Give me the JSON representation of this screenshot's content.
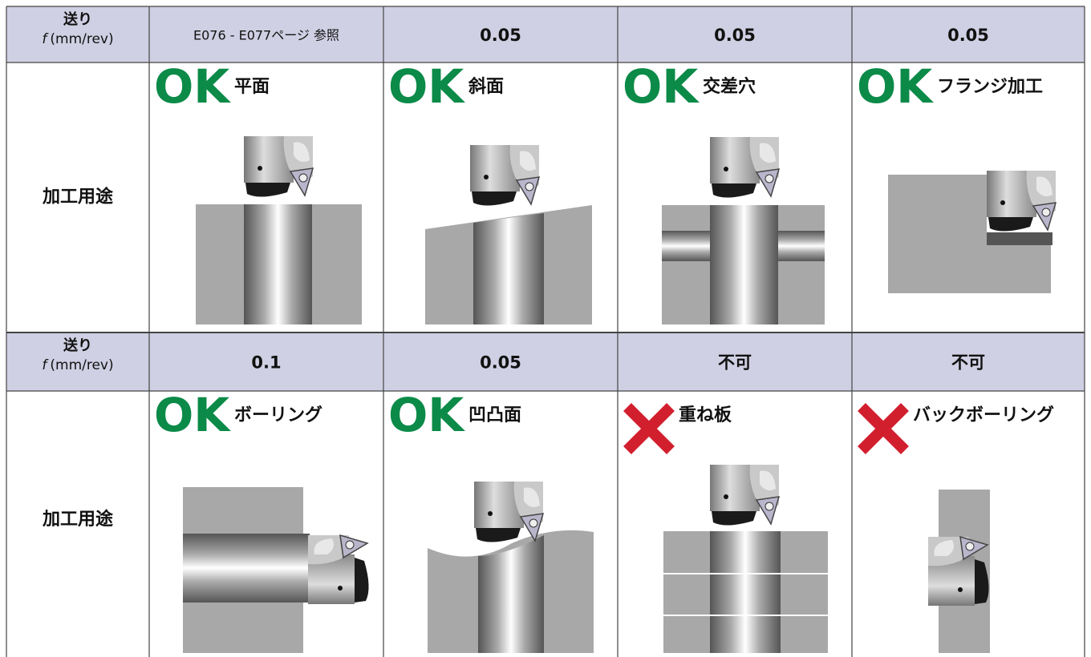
{
  "labels": {
    "feed": "送り",
    "feed_symbol": "f",
    "feed_unit": "(mm/rev)",
    "usage": "加工用途"
  },
  "sections": [
    {
      "feeds": [
        "E076 - E077ページ 参照",
        "0.05",
        "0.05",
        "0.05"
      ],
      "uses": [
        {
          "badge": "OK",
          "label": "平面"
        },
        {
          "badge": "OK",
          "label": "斜面"
        },
        {
          "badge": "OK",
          "label": "交差穴"
        },
        {
          "badge": "OK",
          "label": "フランジ加工"
        }
      ]
    },
    {
      "feeds": [
        "0.1",
        "0.05",
        "不可",
        "不可"
      ],
      "uses": [
        {
          "badge": "OK",
          "label": "ボーリング"
        },
        {
          "badge": "OK",
          "label": "凹凸面"
        },
        {
          "label": "重ね板"
        },
        {
          "label": "バックボーリング"
        }
      ]
    }
  ]
}
